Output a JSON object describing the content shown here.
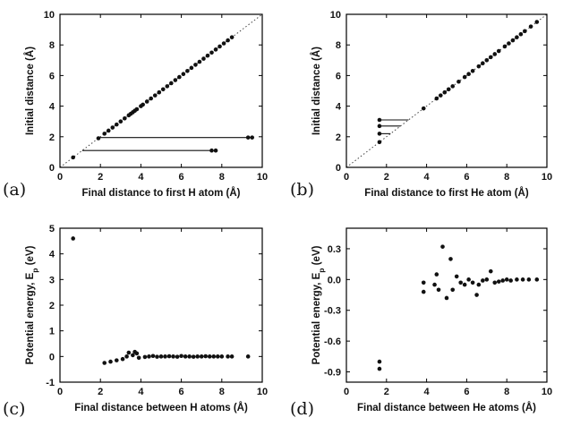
{
  "chart_data": [
    {
      "type": "scatter",
      "panel_label": "(a)",
      "xlabel": "Final distance to first H atom (Å)",
      "ylabel": "Initial distance (Å)",
      "xlim": [
        0,
        10
      ],
      "ylim": [
        0,
        10
      ],
      "xticks": [
        0,
        2,
        4,
        6,
        8,
        10
      ],
      "yticks": [
        0,
        2,
        4,
        6,
        8,
        10
      ],
      "diagonal": true,
      "points": [
        [
          0.65,
          0.65
        ],
        [
          1.9,
          1.9
        ],
        [
          2.2,
          2.2
        ],
        [
          2.4,
          2.4
        ],
        [
          2.6,
          2.6
        ],
        [
          2.8,
          2.8
        ],
        [
          3.0,
          3.0
        ],
        [
          3.2,
          3.2
        ],
        [
          3.4,
          3.4
        ],
        [
          3.5,
          3.5
        ],
        [
          3.6,
          3.6
        ],
        [
          3.7,
          3.7
        ],
        [
          3.8,
          3.8
        ],
        [
          4.0,
          4.0
        ],
        [
          4.1,
          4.1
        ],
        [
          4.3,
          4.3
        ],
        [
          4.5,
          4.5
        ],
        [
          4.7,
          4.7
        ],
        [
          4.9,
          4.9
        ],
        [
          5.1,
          5.1
        ],
        [
          5.3,
          5.3
        ],
        [
          5.5,
          5.5
        ],
        [
          5.7,
          5.7
        ],
        [
          5.9,
          5.9
        ],
        [
          6.1,
          6.1
        ],
        [
          6.3,
          6.3
        ],
        [
          6.5,
          6.5
        ],
        [
          6.7,
          6.7
        ],
        [
          6.9,
          6.9
        ],
        [
          7.1,
          7.1
        ],
        [
          7.3,
          7.3
        ],
        [
          7.5,
          7.5
        ],
        [
          7.7,
          7.7
        ],
        [
          7.9,
          7.9
        ],
        [
          8.1,
          8.1
        ],
        [
          8.3,
          8.3
        ],
        [
          8.5,
          8.5
        ],
        [
          9.3,
          1.95
        ],
        [
          9.5,
          1.95
        ],
        [
          7.5,
          1.1
        ],
        [
          7.7,
          1.1
        ]
      ],
      "trajectories": [
        [
          1.95,
          1.95,
          9.4
        ],
        [
          1.1,
          1.1,
          7.6
        ]
      ]
    },
    {
      "type": "scatter",
      "panel_label": "(b)",
      "xlabel": "Final distance to first He atom (Å)",
      "ylabel": "Initial distance (Å)",
      "xlim": [
        0,
        10
      ],
      "ylim": [
        0,
        10
      ],
      "xticks": [
        0,
        2,
        4,
        6,
        8,
        10
      ],
      "yticks": [
        0,
        2,
        4,
        6,
        8,
        10
      ],
      "diagonal": true,
      "points": [
        [
          1.65,
          1.65
        ],
        [
          1.65,
          2.2
        ],
        [
          1.65,
          2.7
        ],
        [
          1.65,
          3.1
        ],
        [
          3.85,
          3.85
        ],
        [
          4.5,
          4.5
        ],
        [
          4.7,
          4.7
        ],
        [
          4.9,
          4.9
        ],
        [
          5.1,
          5.1
        ],
        [
          5.3,
          5.3
        ],
        [
          5.6,
          5.6
        ],
        [
          5.9,
          5.9
        ],
        [
          6.1,
          6.1
        ],
        [
          6.3,
          6.3
        ],
        [
          6.6,
          6.6
        ],
        [
          6.8,
          6.8
        ],
        [
          7.0,
          7.0
        ],
        [
          7.2,
          7.2
        ],
        [
          7.4,
          7.4
        ],
        [
          7.6,
          7.6
        ],
        [
          7.9,
          7.9
        ],
        [
          8.1,
          8.1
        ],
        [
          8.3,
          8.3
        ],
        [
          8.5,
          8.5
        ],
        [
          8.7,
          8.7
        ],
        [
          8.9,
          8.9
        ],
        [
          9.2,
          9.2
        ],
        [
          9.5,
          9.5
        ]
      ],
      "trajectories": [
        [
          2.2,
          1.65,
          2.2
        ],
        [
          2.7,
          1.65,
          2.7
        ],
        [
          3.1,
          1.65,
          3.1
        ]
      ]
    },
    {
      "type": "scatter",
      "panel_label": "(c)",
      "xlabel": "Final distance between H atoms (Å)",
      "ylabel": "Potential energy, E",
      "ylabel_sub": "p",
      "ylabel_unit": " (eV)",
      "xlim": [
        0,
        10
      ],
      "ylim": [
        -1,
        5
      ],
      "xticks": [
        0,
        2,
        4,
        6,
        8,
        10
      ],
      "yticks": [
        -1,
        0,
        1,
        2,
        3,
        4,
        5
      ],
      "points": [
        [
          0.65,
          4.6
        ],
        [
          2.2,
          -0.25
        ],
        [
          2.5,
          -0.2
        ],
        [
          2.8,
          -0.15
        ],
        [
          3.1,
          -0.1
        ],
        [
          3.3,
          0.0
        ],
        [
          3.4,
          0.15
        ],
        [
          3.6,
          0.05
        ],
        [
          3.7,
          0.18
        ],
        [
          3.8,
          0.12
        ],
        [
          3.9,
          -0.05
        ],
        [
          4.2,
          -0.02
        ],
        [
          4.4,
          0.0
        ],
        [
          4.6,
          0.02
        ],
        [
          4.8,
          -0.01
        ],
        [
          5.0,
          0.0
        ],
        [
          5.2,
          0.0
        ],
        [
          5.4,
          0.01
        ],
        [
          5.6,
          0.0
        ],
        [
          5.8,
          -0.01
        ],
        [
          6.0,
          0.02
        ],
        [
          6.2,
          0.0
        ],
        [
          6.4,
          0.0
        ],
        [
          6.6,
          -0.01
        ],
        [
          6.8,
          0.0
        ],
        [
          7.0,
          0.0
        ],
        [
          7.2,
          0.01
        ],
        [
          7.4,
          0.0
        ],
        [
          7.6,
          0.0
        ],
        [
          7.8,
          0.0
        ],
        [
          8.0,
          0.0
        ],
        [
          8.3,
          0.0
        ],
        [
          8.5,
          0.0
        ],
        [
          9.3,
          0.0
        ]
      ]
    },
    {
      "type": "scatter",
      "panel_label": "(d)",
      "xlabel": "Final distance between He atoms (Å)",
      "ylabel": "Potential energy, E",
      "ylabel_sub": "p",
      "ylabel_unit": " (eV)",
      "xlim": [
        0,
        10
      ],
      "ylim": [
        -1.0,
        0.5
      ],
      "xticks": [
        0,
        2,
        4,
        6,
        8,
        10
      ],
      "yticks": [
        -0.9,
        -0.6,
        -0.3,
        0.0,
        0.3
      ],
      "ytick_labels": [
        "-0.9",
        "-0.6",
        "-0.3",
        "0.0",
        "0.3"
      ],
      "points": [
        [
          1.65,
          -0.8
        ],
        [
          1.65,
          -0.87
        ],
        [
          3.85,
          -0.03
        ],
        [
          3.85,
          -0.12
        ],
        [
          4.4,
          -0.05
        ],
        [
          4.5,
          0.05
        ],
        [
          4.6,
          -0.1
        ],
        [
          4.8,
          0.32
        ],
        [
          5.0,
          -0.18
        ],
        [
          5.2,
          0.2
        ],
        [
          5.3,
          -0.1
        ],
        [
          5.5,
          0.03
        ],
        [
          5.7,
          -0.03
        ],
        [
          5.9,
          -0.05
        ],
        [
          6.1,
          0.0
        ],
        [
          6.3,
          -0.03
        ],
        [
          6.5,
          -0.15
        ],
        [
          6.6,
          -0.05
        ],
        [
          6.8,
          -0.01
        ],
        [
          7.0,
          0.0
        ],
        [
          7.2,
          0.08
        ],
        [
          7.4,
          -0.03
        ],
        [
          7.6,
          -0.02
        ],
        [
          7.8,
          -0.01
        ],
        [
          8.0,
          0.0
        ],
        [
          8.2,
          -0.01
        ],
        [
          8.5,
          0.0
        ],
        [
          8.8,
          0.0
        ],
        [
          9.1,
          0.0
        ],
        [
          9.5,
          0.0
        ]
      ]
    }
  ]
}
